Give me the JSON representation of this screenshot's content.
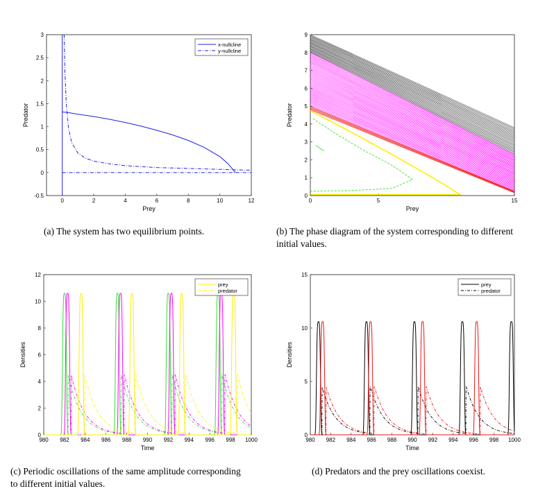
{
  "colors": {
    "blue": "#1f1fe0",
    "magenta": "#ff00ff",
    "green": "#33dd33",
    "yellow": "#ffee00",
    "red": "#ee1111",
    "black": "#000000",
    "gray": "#555555",
    "pink": "#ff44ff"
  },
  "chart_data": [
    {
      "id": "a",
      "type": "line",
      "xlabel": "Prey",
      "ylabel": "Predator",
      "xlim": [
        -1,
        12
      ],
      "ylim": [
        -0.5,
        3
      ],
      "xticks": [
        0,
        2,
        4,
        6,
        8,
        10,
        12
      ],
      "yticks": [
        -0.5,
        0,
        0.5,
        1,
        1.5,
        2,
        2.5,
        3
      ],
      "legend": {
        "position": "top-right",
        "entries": [
          "x-nullcline",
          "y-nullcline"
        ]
      },
      "series": [
        {
          "name": "x-nullcline",
          "style": "solid",
          "color": "blue",
          "segments": [
            [
              [
                0,
                1.32
              ],
              [
                0.5,
                1.3
              ],
              [
                1,
                1.27
              ],
              [
                2,
                1.22
              ],
              [
                3,
                1.16
              ],
              [
                4,
                1.09
              ],
              [
                5,
                1.01
              ],
              [
                6,
                0.92
              ],
              [
                7,
                0.82
              ],
              [
                8,
                0.7
              ],
              [
                9,
                0.55
              ],
              [
                10,
                0.35
              ],
              [
                10.5,
                0.2
              ],
              [
                11,
                0
              ]
            ],
            [
              [
                0,
                -0.5
              ],
              [
                0,
                3
              ]
            ]
          ]
        },
        {
          "name": "y-nullcline",
          "style": "dashdot",
          "color": "blue",
          "segments": [
            [
              [
                0.12,
                3
              ],
              [
                0.17,
                2.2
              ],
              [
                0.25,
                1.5
              ],
              [
                0.4,
                0.95
              ],
              [
                0.6,
                0.65
              ],
              [
                1,
                0.42
              ],
              [
                1.5,
                0.31
              ],
              [
                2,
                0.25
              ],
              [
                3,
                0.19
              ],
              [
                4,
                0.15
              ],
              [
                6,
                0.11
              ],
              [
                8,
                0.09
              ],
              [
                10,
                0.07
              ],
              [
                12,
                0.05
              ]
            ],
            [
              [
                0,
                0
              ],
              [
                12,
                0
              ]
            ]
          ]
        }
      ]
    },
    {
      "id": "b",
      "type": "line",
      "xlabel": "Prey",
      "ylabel": "Predator",
      "xlim": [
        0,
        15
      ],
      "ylim": [
        0,
        9
      ],
      "xticks": [
        0,
        5,
        15
      ],
      "yticks": [
        0,
        1,
        2,
        3,
        4,
        5,
        6,
        7,
        8,
        9
      ],
      "bands": [
        {
          "name": "black trajectories",
          "color": "gray",
          "top_left_y": 9.0,
          "bottom_left_y": 8.0,
          "right_end_top_y": 3.8,
          "right_end_bottom_y": 2.3
        },
        {
          "name": "magenta trajectories",
          "color": "magenta",
          "top_left_y": 8.0,
          "bottom_left_y": 5.0,
          "right_end_top_y": 2.3,
          "right_end_bottom_y": 0.25
        },
        {
          "name": "red trajectories",
          "color": "red",
          "top_left_y": 5.0,
          "bottom_left_y": 4.8,
          "right_end_top_y": 0.25,
          "right_end_bottom_y": 0.15
        }
      ],
      "curves": [
        {
          "name": "yellow trajectory",
          "color": "yellow",
          "points": [
            [
              0,
              4.75
            ],
            [
              3,
              3.55
            ],
            [
              6,
              2.3
            ],
            [
              9,
              1.0
            ],
            [
              10.5,
              0.3
            ],
            [
              11,
              0.05
            ],
            [
              0,
              0.05
            ]
          ]
        },
        {
          "name": "green dashed trajectory",
          "color": "green",
          "points": [
            [
              0.2,
              4.3
            ],
            [
              2,
              3.4
            ],
            [
              4,
              2.5
            ],
            [
              6,
              1.7
            ],
            [
              7.5,
              0.9
            ],
            [
              6,
              0.4
            ],
            [
              3,
              0.28
            ],
            [
              0,
              0.25
            ]
          ]
        },
        {
          "name": "green inner trajectory",
          "color": "green",
          "points": [
            [
              0.4,
              2.8
            ],
            [
              0.8,
              2.6
            ],
            [
              1.0,
              2.5
            ]
          ]
        }
      ]
    },
    {
      "id": "c",
      "type": "line",
      "xlabel": "Time",
      "ylabel": "Densities",
      "xlim": [
        980,
        1000
      ],
      "ylim": [
        0,
        12
      ],
      "xticks": [
        980,
        982,
        984,
        986,
        988,
        990,
        992,
        994,
        996,
        998,
        1000
      ],
      "yticks": [
        0,
        2,
        4,
        6,
        8,
        10,
        12
      ],
      "legend": {
        "position": "top-right",
        "entries": [
          "prey",
          "predator"
        ]
      },
      "pulse_peak": 10.6,
      "predator_peak": 4.5,
      "series": [
        {
          "name": "green",
          "color": "green",
          "peak_times": [
            982.0,
            987.1,
            992.0,
            996.8
          ]
        },
        {
          "name": "magenta",
          "color": "magenta",
          "peak_times": [
            982.3,
            987.4,
            992.3,
            997.1
          ]
        },
        {
          "name": "yellow",
          "color": "yellow",
          "peak_times": [
            983.6,
            988.5,
            993.3,
            998.3
          ]
        }
      ]
    },
    {
      "id": "d",
      "type": "line",
      "xlabel": "Time",
      "ylabel": "Densities",
      "xlim": [
        980,
        1000
      ],
      "ylim": [
        0,
        15
      ],
      "xticks": [
        980,
        982,
        984,
        986,
        988,
        990,
        992,
        994,
        996,
        998,
        1000
      ],
      "yticks": [
        0,
        5,
        10,
        15
      ],
      "legend": {
        "position": "top-right",
        "entries": [
          "prey",
          "predator"
        ]
      },
      "pulse_peak": 10.6,
      "predator_peak": 4.5,
      "series": [
        {
          "name": "black",
          "color": "black",
          "peak_times": [
            980.8,
            985.5,
            990.2,
            994.9,
            999.7
          ]
        },
        {
          "name": "red",
          "color": "red",
          "peak_times": [
            981.2,
            985.9,
            991.0,
            996.3
          ]
        }
      ]
    }
  ],
  "captions": {
    "a": "(a)  The system has two equilibrium points.",
    "b1": "(b)  The phase diagram of the system corresponding to different",
    "b2": "initial values.",
    "c1": "(c)  Periodic oscillations of the same amplitude corresponding",
    "c2": "to different initial values.",
    "d": "(d)  Predators and the prey oscillations coexist."
  }
}
